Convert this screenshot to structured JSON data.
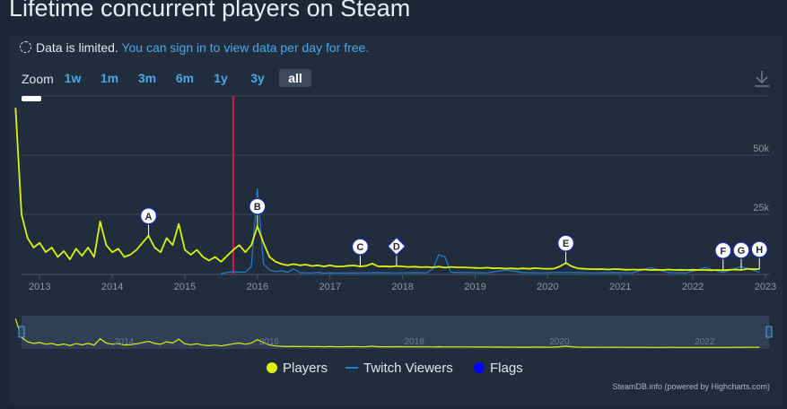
{
  "page": {
    "title": "Lifetime concurrent players on Steam",
    "notice_text": "Data is limited.",
    "notice_link": "You can sign in to view data per day for free."
  },
  "zoom": {
    "label": "Zoom",
    "buttons": [
      "1w",
      "1m",
      "3m",
      "6m",
      "1y",
      "3y",
      "all"
    ],
    "active": "all"
  },
  "legend": {
    "players": "Players",
    "twitch": "Twitch Viewers",
    "flags": "Flags"
  },
  "credit": "SteamDB.info (powered by Highcharts.com)",
  "colors": {
    "players": "#d9f40a",
    "twitch": "#1f7fd1",
    "flags": "#0000ff",
    "link": "#49a8e8",
    "marker": "#d2184d"
  },
  "chart_data": {
    "type": "line",
    "x_axis": {
      "type": "date",
      "ticks": [
        "2013",
        "2014",
        "2015",
        "2016",
        "2017",
        "2018",
        "2019",
        "2020",
        "2021",
        "2022",
        "2023"
      ]
    },
    "y_axis": {
      "ticks": [
        "25k",
        "50k"
      ],
      "range": [
        0,
        75000
      ]
    },
    "navigator_ticks": [
      "2014",
      "2016",
      "2018",
      "2020",
      "2022"
    ],
    "grid": true,
    "legend_position": "bottom",
    "plot_line_date": "2015-09",
    "series": [
      {
        "name": "Players",
        "points": [
          [
            "2012-09",
            70000
          ],
          [
            "2012-10",
            25000
          ],
          [
            "2012-11",
            15000
          ],
          [
            "2012-12",
            11000
          ],
          [
            "2013-01",
            13000
          ],
          [
            "2013-02",
            9000
          ],
          [
            "2013-03",
            11000
          ],
          [
            "2013-04",
            7000
          ],
          [
            "2013-05",
            9500
          ],
          [
            "2013-06",
            6000
          ],
          [
            "2013-07",
            10500
          ],
          [
            "2013-08",
            7500
          ],
          [
            "2013-09",
            11000
          ],
          [
            "2013-10",
            7000
          ],
          [
            "2013-11",
            22000
          ],
          [
            "2013-12",
            12000
          ],
          [
            "2014-01",
            9000
          ],
          [
            "2014-02",
            10500
          ],
          [
            "2014-03",
            7000
          ],
          [
            "2014-04",
            8000
          ],
          [
            "2014-05",
            10000
          ],
          [
            "2014-06",
            13000
          ],
          [
            "2014-07",
            16000
          ],
          [
            "2014-08",
            11000
          ],
          [
            "2014-09",
            9000
          ],
          [
            "2014-10",
            15000
          ],
          [
            "2014-11",
            12000
          ],
          [
            "2014-12",
            21000
          ],
          [
            "2015-01",
            10000
          ],
          [
            "2015-02",
            8000
          ],
          [
            "2015-03",
            10000
          ],
          [
            "2015-04",
            7000
          ],
          [
            "2015-05",
            5500
          ],
          [
            "2015-06",
            7000
          ],
          [
            "2015-07",
            5000
          ],
          [
            "2015-08",
            7500
          ],
          [
            "2015-09",
            10000
          ],
          [
            "2015-10",
            12000
          ],
          [
            "2015-11",
            9000
          ],
          [
            "2015-12",
            12000
          ],
          [
            "2016-01",
            20000
          ],
          [
            "2016-02",
            13000
          ],
          [
            "2016-03",
            7000
          ],
          [
            "2016-04",
            5000
          ],
          [
            "2016-05",
            4000
          ],
          [
            "2016-06",
            3500
          ],
          [
            "2016-07",
            4000
          ],
          [
            "2016-08",
            3500
          ],
          [
            "2016-09",
            3800
          ],
          [
            "2016-10",
            3200
          ],
          [
            "2016-11",
            3500
          ],
          [
            "2016-12",
            3000
          ],
          [
            "2017-01",
            3500
          ],
          [
            "2017-02",
            3000
          ],
          [
            "2017-03",
            3000
          ],
          [
            "2017-04",
            3300
          ],
          [
            "2017-05",
            3400
          ],
          [
            "2017-06",
            3000
          ],
          [
            "2017-07",
            3300
          ],
          [
            "2017-08",
            4200
          ],
          [
            "2017-09",
            3000
          ],
          [
            "2017-10",
            3100
          ],
          [
            "2017-11",
            2900
          ],
          [
            "2017-12",
            3200
          ],
          [
            "2018-01",
            3000
          ],
          [
            "2018-02",
            2800
          ],
          [
            "2018-03",
            2900
          ],
          [
            "2018-04",
            2700
          ],
          [
            "2018-05",
            2800
          ],
          [
            "2018-06",
            2600
          ],
          [
            "2018-07",
            2900
          ],
          [
            "2018-08",
            2500
          ],
          [
            "2018-09",
            2800
          ],
          [
            "2018-10",
            2600
          ],
          [
            "2018-11",
            2600
          ],
          [
            "2018-12",
            2500
          ],
          [
            "2019-01",
            2400
          ],
          [
            "2019-02",
            2300
          ],
          [
            "2019-03",
            2500
          ],
          [
            "2019-04",
            2200
          ],
          [
            "2019-05",
            2300
          ],
          [
            "2019-06",
            2100
          ],
          [
            "2019-07",
            2200
          ],
          [
            "2019-08",
            2000
          ],
          [
            "2019-09",
            2200
          ],
          [
            "2019-10",
            2000
          ],
          [
            "2019-11",
            2300
          ],
          [
            "2019-12",
            2100
          ],
          [
            "2020-01",
            2000
          ],
          [
            "2020-02",
            2100
          ],
          [
            "2020-03",
            3000
          ],
          [
            "2020-04",
            4500
          ],
          [
            "2020-05",
            3000
          ],
          [
            "2020-06",
            2200
          ],
          [
            "2020-07",
            2000
          ],
          [
            "2020-08",
            1900
          ],
          [
            "2020-09",
            1800
          ],
          [
            "2020-10",
            1900
          ],
          [
            "2020-11",
            1700
          ],
          [
            "2020-12",
            1900
          ],
          [
            "2021-01",
            1800
          ],
          [
            "2021-02",
            1600
          ],
          [
            "2021-03",
            1700
          ],
          [
            "2021-04",
            1600
          ],
          [
            "2021-05",
            1700
          ],
          [
            "2021-06",
            1500
          ],
          [
            "2021-07",
            1600
          ],
          [
            "2021-08",
            1500
          ],
          [
            "2021-09",
            1700
          ],
          [
            "2021-10",
            1500
          ],
          [
            "2021-11",
            1600
          ],
          [
            "2021-12",
            1500
          ],
          [
            "2022-01",
            1600
          ],
          [
            "2022-02",
            1500
          ],
          [
            "2022-03",
            1500
          ],
          [
            "2022-04",
            1400
          ],
          [
            "2022-05",
            1500
          ],
          [
            "2022-06",
            1400
          ],
          [
            "2022-07",
            1600
          ],
          [
            "2022-08",
            1700
          ],
          [
            "2022-09",
            1500
          ],
          [
            "2022-10",
            2000
          ],
          [
            "2022-11",
            1800
          ],
          [
            "2022-12",
            1900
          ]
        ]
      },
      {
        "name": "Twitch Viewers",
        "points": [
          [
            "2015-07",
            0
          ],
          [
            "2015-08",
            500
          ],
          [
            "2015-09",
            800
          ],
          [
            "2015-10",
            600
          ],
          [
            "2015-11",
            500
          ],
          [
            "2015-12",
            3000
          ],
          [
            "2016-01",
            36000
          ],
          [
            "2016-02",
            4000
          ],
          [
            "2016-03",
            1500
          ],
          [
            "2016-04",
            800
          ],
          [
            "2016-05",
            1200
          ],
          [
            "2016-06",
            500
          ],
          [
            "2016-07",
            2000
          ],
          [
            "2016-08",
            400
          ],
          [
            "2016-09",
            300
          ],
          [
            "2016-10",
            300
          ],
          [
            "2016-11",
            500
          ],
          [
            "2016-12",
            200
          ],
          [
            "2017-01",
            300
          ],
          [
            "2017-03",
            250
          ],
          [
            "2017-06",
            300
          ],
          [
            "2017-09",
            400
          ],
          [
            "2017-12",
            300
          ],
          [
            "2018-03",
            400
          ],
          [
            "2018-05",
            300
          ],
          [
            "2018-06",
            2000
          ],
          [
            "2018-07",
            8000
          ],
          [
            "2018-08",
            7000
          ],
          [
            "2018-09",
            500
          ],
          [
            "2018-12",
            400
          ],
          [
            "2019-03",
            300
          ],
          [
            "2019-06",
            1500
          ],
          [
            "2019-09",
            400
          ],
          [
            "2019-12",
            300
          ],
          [
            "2020-03",
            500
          ],
          [
            "2020-06",
            400
          ],
          [
            "2020-09",
            300
          ],
          [
            "2020-12",
            400
          ],
          [
            "2021-03",
            300
          ],
          [
            "2021-06",
            2500
          ],
          [
            "2021-09",
            400
          ],
          [
            "2021-12",
            300
          ],
          [
            "2022-03",
            2500
          ],
          [
            "2022-06",
            400
          ],
          [
            "2022-09",
            3000
          ],
          [
            "2022-12",
            600
          ]
        ]
      }
    ],
    "flags": [
      {
        "label": "A",
        "date": "2014-07",
        "shape": "circle"
      },
      {
        "label": "B",
        "date": "2016-01",
        "shape": "circle"
      },
      {
        "label": "C",
        "date": "2017-06",
        "shape": "circle"
      },
      {
        "label": "D",
        "date": "2017-12",
        "shape": "diamond"
      },
      {
        "label": "E",
        "date": "2020-04",
        "shape": "circle"
      },
      {
        "label": "F",
        "date": "2022-06",
        "shape": "circle"
      },
      {
        "label": "G",
        "date": "2022-09",
        "shape": "circle"
      },
      {
        "label": "H",
        "date": "2022-12",
        "shape": "circle"
      }
    ]
  }
}
